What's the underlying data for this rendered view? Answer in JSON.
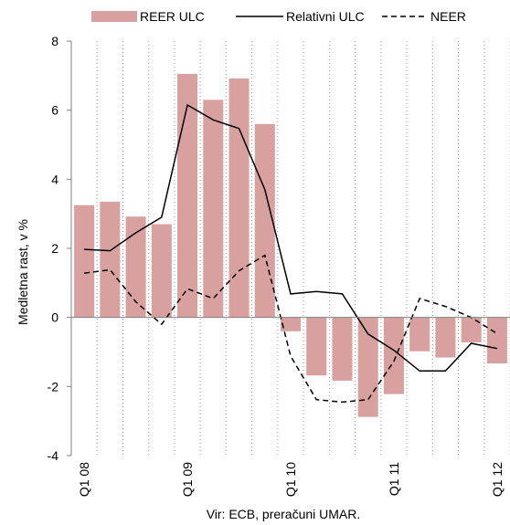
{
  "chart_data": {
    "type": "bar",
    "title": "",
    "xlabel": "",
    "ylabel": "Medletna rast, v %",
    "ylim": [
      -4,
      8
    ],
    "yticks": [
      -4,
      -2,
      0,
      2,
      4,
      6,
      8
    ],
    "grid": "dotted vertical",
    "legend_position": "top",
    "source": "Vir: ECB, preračuni UMAR.",
    "categories": [
      "Q1 08",
      "Q2 08",
      "Q3 08",
      "Q4 08",
      "Q1 09",
      "Q2 09",
      "Q3 09",
      "Q4 09",
      "Q1 10",
      "Q2 10",
      "Q3 10",
      "Q4 10",
      "Q1 11",
      "Q2 11",
      "Q3 11",
      "Q4 11",
      "Q1 12"
    ],
    "x_tick_labels": [
      "Q1 08",
      "",
      "",
      "",
      "Q1 09",
      "",
      "",
      "",
      "Q1 10",
      "",
      "",
      "",
      "Q1 11",
      "",
      "",
      "",
      "Q1 12"
    ],
    "series": [
      {
        "name": "REER ULC",
        "kind": "bar",
        "color": "#d9a0a0",
        "values": [
          3.25,
          3.35,
          2.92,
          2.7,
          7.05,
          6.3,
          6.92,
          5.6,
          -0.4,
          -1.68,
          -1.83,
          -2.88,
          -2.22,
          -0.98,
          -1.16,
          -0.72,
          -1.33
        ]
      },
      {
        "name": "Relativni ULC",
        "kind": "line",
        "color": "#000000",
        "dash": "solid",
        "values": [
          1.97,
          1.93,
          2.45,
          2.9,
          6.15,
          5.72,
          5.47,
          3.7,
          0.68,
          0.75,
          0.68,
          -0.48,
          -0.95,
          -1.55,
          -1.55,
          -0.75,
          -0.9
        ]
      },
      {
        "name": "NEER",
        "kind": "line",
        "color": "#000000",
        "dash": "dashed",
        "values": [
          1.28,
          1.38,
          0.45,
          -0.2,
          0.83,
          0.55,
          1.35,
          1.8,
          -1.12,
          -2.38,
          -2.45,
          -2.38,
          -1.27,
          0.55,
          0.32,
          0.0,
          -0.47
        ]
      }
    ]
  }
}
